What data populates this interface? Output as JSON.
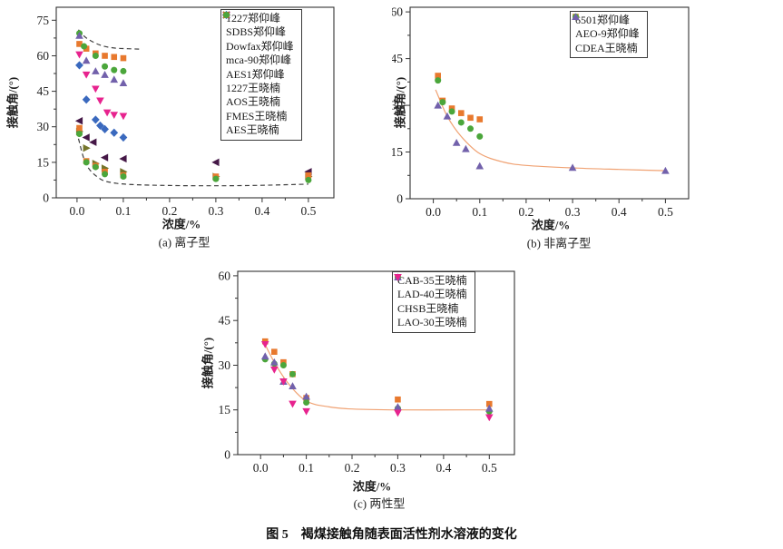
{
  "figure": {
    "caption": "图 5　褐煤接触角随表面活性剂水溶液的变化"
  },
  "chart_data": [
    {
      "id": "a",
      "type": "scatter",
      "subtitle": "(a) 离子型",
      "xlabel": "浓度/%",
      "ylabel": "接触角/(°)",
      "xlim": [
        -0.045,
        0.555
      ],
      "ylim": [
        0,
        80.5
      ],
      "xticks": [
        0.0,
        0.1,
        0.2,
        0.3,
        0.4,
        0.5
      ],
      "yticks": [
        0,
        15,
        30,
        45,
        60,
        75
      ],
      "legend_position": "top-right",
      "series": [
        {
          "name": "1227郑仰峰",
          "marker": "square",
          "color": "#e8792e",
          "points": [
            [
              0.005,
              65
            ],
            [
              0.02,
              63
            ],
            [
              0.04,
              61
            ],
            [
              0.06,
              60
            ],
            [
              0.08,
              59.5
            ],
            [
              0.1,
              59
            ]
          ]
        },
        {
          "name": "SDBS郑仰峰",
          "marker": "circle",
          "color": "#4ba63b",
          "points": [
            [
              0.005,
              69.5
            ],
            [
              0.015,
              64
            ],
            [
              0.04,
              60
            ],
            [
              0.06,
              55.5
            ],
            [
              0.08,
              54
            ],
            [
              0.1,
              53.5
            ]
          ]
        },
        {
          "name": "Dowfax郑仰峰",
          "marker": "triangle-up",
          "color": "#7261ab",
          "points": [
            [
              0.005,
              68.5
            ],
            [
              0.02,
              58
            ],
            [
              0.04,
              53.5
            ],
            [
              0.06,
              52
            ],
            [
              0.08,
              50
            ],
            [
              0.1,
              48.5
            ]
          ]
        },
        {
          "name": "mca-90郑仰峰",
          "marker": "triangle-down",
          "color": "#e7238e",
          "points": [
            [
              0.005,
              60.5
            ],
            [
              0.02,
              52
            ],
            [
              0.04,
              46
            ],
            [
              0.05,
              41
            ],
            [
              0.065,
              36
            ],
            [
              0.08,
              35
            ],
            [
              0.1,
              34.5
            ]
          ]
        },
        {
          "name": "AES1郑仰峰",
          "marker": "diamond",
          "color": "#3a69be",
          "points": [
            [
              0.005,
              56
            ],
            [
              0.02,
              41.5
            ],
            [
              0.04,
              33
            ],
            [
              0.05,
              30.5
            ],
            [
              0.06,
              29
            ],
            [
              0.08,
              27.5
            ],
            [
              0.1,
              25.5
            ]
          ]
        },
        {
          "name": "1227王晓楠",
          "marker": "triangle-left",
          "color": "#451847",
          "points": [
            [
              0.005,
              32.5
            ],
            [
              0.02,
              25.5
            ],
            [
              0.035,
              23.5
            ],
            [
              0.06,
              17
            ],
            [
              0.1,
              16.5
            ],
            [
              0.3,
              15
            ],
            [
              0.5,
              11
            ]
          ]
        },
        {
          "name": "AOS王晓楠",
          "marker": "triangle-right",
          "color": "#75752b",
          "points": [
            [
              0.005,
              28
            ],
            [
              0.02,
              21
            ],
            [
              0.04,
              14.5
            ],
            [
              0.06,
              12.5
            ],
            [
              0.1,
              11
            ],
            [
              0.3,
              9
            ],
            [
              0.5,
              9
            ]
          ]
        },
        {
          "name": "FMES王晓楠",
          "marker": "square",
          "color": "#e8792e",
          "points": [
            [
              0.005,
              29.5
            ],
            [
              0.02,
              15.5
            ],
            [
              0.04,
              13.5
            ],
            [
              0.06,
              11
            ],
            [
              0.1,
              9.5
            ],
            [
              0.3,
              9
            ],
            [
              0.5,
              9.5
            ]
          ]
        },
        {
          "name": "AES王晓楠",
          "marker": "circle",
          "color": "#4ba63b",
          "points": [
            [
              0.005,
              27
            ],
            [
              0.02,
              15
            ],
            [
              0.04,
              13
            ],
            [
              0.06,
              10
            ],
            [
              0.1,
              9
            ],
            [
              0.3,
              8
            ],
            [
              0.5,
              7.5
            ]
          ]
        }
      ],
      "curves": [
        {
          "style": "dashed",
          "color": "#3f3f3f",
          "points": [
            [
              0.003,
              71
            ],
            [
              0.02,
              67.5
            ],
            [
              0.05,
              64.5
            ],
            [
              0.08,
              63.3
            ],
            [
              0.11,
              63
            ],
            [
              0.14,
              62.8
            ]
          ]
        },
        {
          "style": "dashed",
          "color": "#3f3f3f",
          "points": [
            [
              0.003,
              25
            ],
            [
              0.02,
              14
            ],
            [
              0.05,
              8
            ],
            [
              0.08,
              6.3
            ],
            [
              0.12,
              5.6
            ],
            [
              0.2,
              5.2
            ],
            [
              0.3,
              5.1
            ],
            [
              0.4,
              5.3
            ],
            [
              0.5,
              5.8
            ]
          ]
        }
      ]
    },
    {
      "id": "b",
      "type": "scatter",
      "subtitle": "(b) 非离子型",
      "xlabel": "浓度/%",
      "ylabel": "接触角/(°)",
      "xlim": [
        -0.05,
        0.55
      ],
      "ylim": [
        0,
        61.5
      ],
      "xticks": [
        0.0,
        0.1,
        0.2,
        0.3,
        0.4,
        0.5
      ],
      "yticks": [
        0,
        15,
        30,
        45,
        60
      ],
      "legend_position": "top-right",
      "series": [
        {
          "name": "6501郑仰峰",
          "marker": "square",
          "color": "#e8792e",
          "points": [
            [
              0.01,
              39.5
            ],
            [
              0.02,
              31.5
            ],
            [
              0.04,
              29
            ],
            [
              0.06,
              27.5
            ],
            [
              0.08,
              26
            ],
            [
              0.1,
              25.5
            ]
          ]
        },
        {
          "name": "AEO-9郑仰峰",
          "marker": "circle",
          "color": "#4ba63b",
          "points": [
            [
              0.01,
              38
            ],
            [
              0.02,
              31
            ],
            [
              0.04,
              28
            ],
            [
              0.06,
              24.5
            ],
            [
              0.08,
              22.5
            ],
            [
              0.1,
              20
            ]
          ]
        },
        {
          "name": "CDEA王晓楠",
          "marker": "triangle-up",
          "color": "#7261ab",
          "points": [
            [
              0.01,
              30
            ],
            [
              0.03,
              26.5
            ],
            [
              0.05,
              18
            ],
            [
              0.07,
              16
            ],
            [
              0.1,
              10.5
            ],
            [
              0.3,
              10
            ],
            [
              0.5,
              9
            ]
          ]
        }
      ],
      "curves": [
        {
          "style": "solid",
          "color": "#f0a273",
          "points": [
            [
              0.005,
              35
            ],
            [
              0.03,
              26.5
            ],
            [
              0.06,
              20
            ],
            [
              0.1,
              14.5
            ],
            [
              0.15,
              11.8
            ],
            [
              0.2,
              10.7
            ],
            [
              0.3,
              9.9
            ],
            [
              0.4,
              9.4
            ],
            [
              0.5,
              9
            ]
          ]
        }
      ]
    },
    {
      "id": "c",
      "type": "scatter",
      "subtitle": "(c) 两性型",
      "xlabel": "浓度/%",
      "ylabel": "接触角/(°)",
      "xlim": [
        -0.05,
        0.555
      ],
      "ylim": [
        0,
        61.5
      ],
      "xticks": [
        0.0,
        0.1,
        0.2,
        0.3,
        0.4,
        0.5
      ],
      "yticks": [
        0,
        15,
        30,
        45,
        60
      ],
      "legend_position": "top-right",
      "series": [
        {
          "name": "CAB-35王晓楠",
          "marker": "square",
          "color": "#e8792e",
          "points": [
            [
              0.01,
              38
            ],
            [
              0.03,
              34.5
            ],
            [
              0.05,
              31
            ],
            [
              0.07,
              27
            ],
            [
              0.1,
              19
            ],
            [
              0.3,
              18.5
            ],
            [
              0.5,
              17
            ]
          ]
        },
        {
          "name": "LAD-40王晓楠",
          "marker": "circle",
          "color": "#4ba63b",
          "points": [
            [
              0.01,
              32
            ],
            [
              0.03,
              30.5
            ],
            [
              0.05,
              30
            ],
            [
              0.07,
              27
            ],
            [
              0.1,
              17.5
            ],
            [
              0.3,
              15.5
            ],
            [
              0.5,
              14.5
            ]
          ]
        },
        {
          "name": "CHSB王晓楠",
          "marker": "triangle-up",
          "color": "#7261ab",
          "points": [
            [
              0.01,
              33
            ],
            [
              0.03,
              31
            ],
            [
              0.05,
              24.5
            ],
            [
              0.07,
              23
            ],
            [
              0.1,
              19.5
            ],
            [
              0.3,
              16
            ],
            [
              0.5,
              15.5
            ]
          ]
        },
        {
          "name": "LAO-30王晓楠",
          "marker": "triangle-down",
          "color": "#e7238e",
          "points": [
            [
              0.01,
              37
            ],
            [
              0.03,
              28.5
            ],
            [
              0.05,
              24.5
            ],
            [
              0.07,
              17
            ],
            [
              0.1,
              14.5
            ],
            [
              0.3,
              14
            ],
            [
              0.5,
              12.5
            ]
          ]
        }
      ],
      "curves": [
        {
          "style": "solid",
          "color": "#f0a273",
          "points": [
            [
              0.005,
              38.5
            ],
            [
              0.03,
              31
            ],
            [
              0.06,
              24
            ],
            [
              0.1,
              18
            ],
            [
              0.15,
              16
            ],
            [
              0.2,
              15.3
            ],
            [
              0.3,
              15
            ],
            [
              0.45,
              15
            ],
            [
              0.5,
              15
            ]
          ]
        }
      ]
    }
  ]
}
